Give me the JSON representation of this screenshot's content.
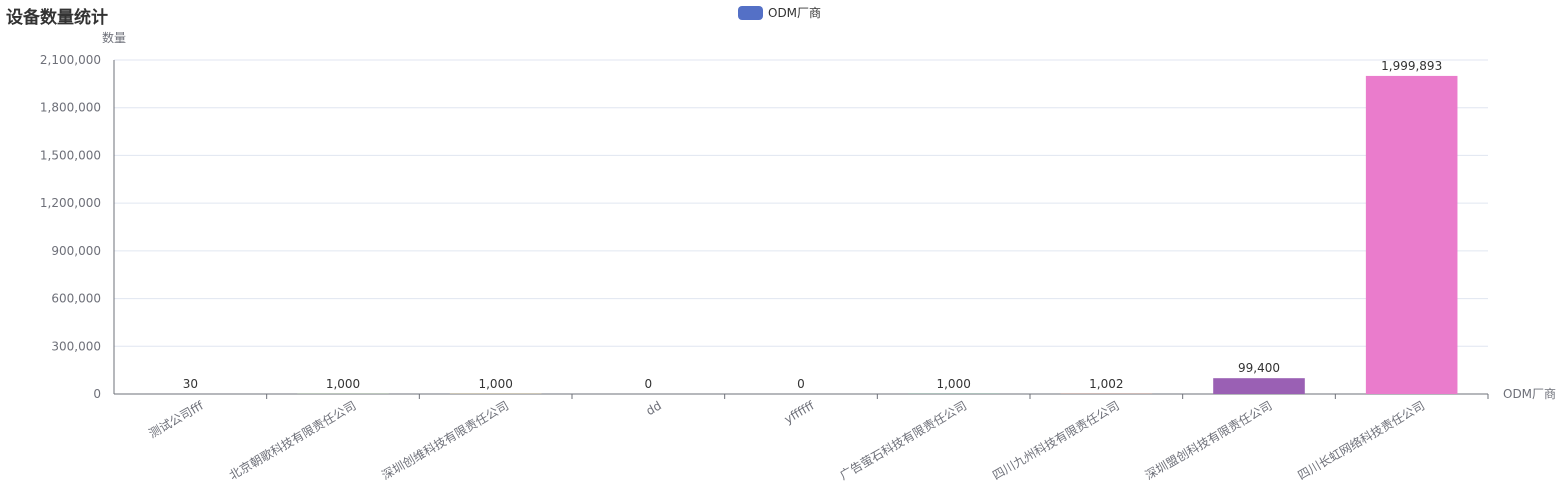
{
  "title": "设备数量统计",
  "legend": {
    "label": "ODM厂商",
    "color": "#5470c6"
  },
  "chart_data": {
    "type": "bar",
    "title": "设备数量统计",
    "ylabel": "数量",
    "xlabel": "ODM厂商",
    "ylim": [
      0,
      2100000
    ],
    "yticks": [
      0,
      300000,
      600000,
      900000,
      1200000,
      1500000,
      1800000,
      2100000
    ],
    "ytick_labels": [
      "0",
      "300,000",
      "600,000",
      "900,000",
      "1,200,000",
      "1,500,000",
      "1,800,000",
      "2,100,000"
    ],
    "grid": true,
    "legend_position": "top-center",
    "categories": [
      "测试公司fff",
      "北京朝歌科技有限责任公司",
      "深圳创维科技有限责任公司",
      "dd",
      "yffffff",
      "广告萤石科技有限责任公司",
      "四川九州科技有限责任公司",
      "深圳盟创科技有限责任公司",
      "四川长虹网络科技责任公司"
    ],
    "series": [
      {
        "name": "ODM厂商",
        "values": [
          30,
          1000,
          1000,
          0,
          0,
          1000,
          1002,
          99400,
          1999893
        ],
        "value_labels": [
          "30",
          "1,000",
          "1,000",
          "0",
          "0",
          "1,000",
          "1,002",
          "99,400",
          "1,999,893"
        ],
        "colors": [
          "#5470c6",
          "#91cc75",
          "#fac858",
          "#ee6666",
          "#73c0de",
          "#3ba272",
          "#fc8452",
          "#9a60b4",
          "#ea7ccc"
        ]
      }
    ]
  }
}
